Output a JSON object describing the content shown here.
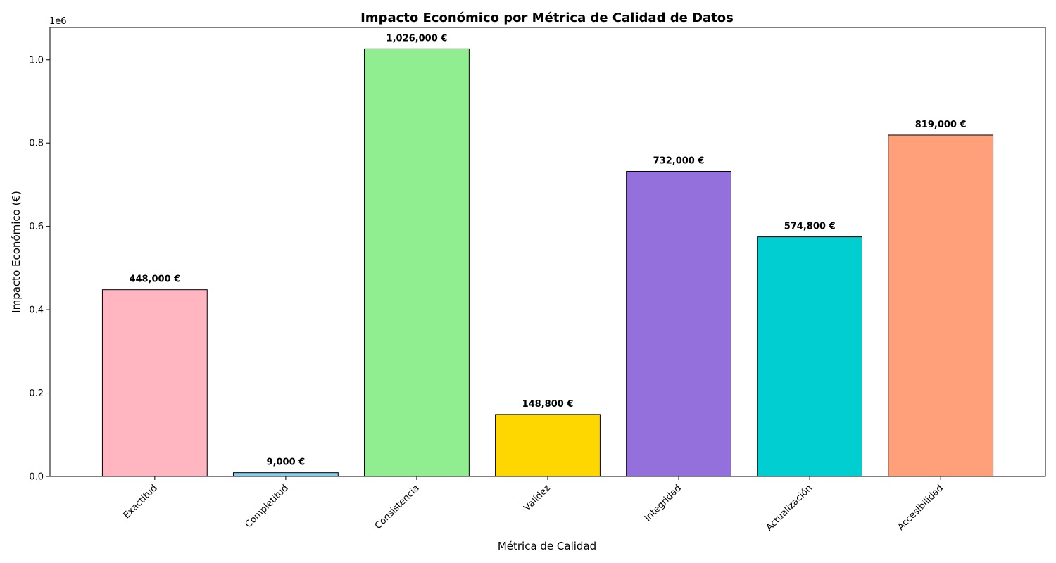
{
  "chart_data": {
    "type": "bar",
    "title": "Impacto Económico por Métrica de Calidad de Datos",
    "xlabel": "Métrica de Calidad",
    "ylabel": "Impacto Económico (€)",
    "y_offset_text": "1e6",
    "categories": [
      "Exactitud",
      "Completitud",
      "Consistencia",
      "Validez",
      "Integridad",
      "Actualización",
      "Accesibilidad"
    ],
    "values": [
      448000,
      9000,
      1026000,
      148800,
      732000,
      574800,
      819000
    ],
    "value_labels": [
      "448,000 €",
      "9,000 €",
      "1,026,000 €",
      "148,800 €",
      "732,000 €",
      "574,800 €",
      "819,000 €"
    ],
    "colors": [
      "#FFB6C1",
      "#87CEEB",
      "#90EE90",
      "#FFD700",
      "#9370DB",
      "#00CED1",
      "#FFA07A"
    ],
    "ylim": [
      0,
      1077300
    ],
    "yticks": [
      0,
      200000,
      400000,
      600000,
      800000,
      1000000
    ],
    "ytick_labels": [
      "0.0",
      "0.2",
      "0.4",
      "0.6",
      "0.8",
      "1.0"
    ],
    "grid": false,
    "legend": false
  }
}
